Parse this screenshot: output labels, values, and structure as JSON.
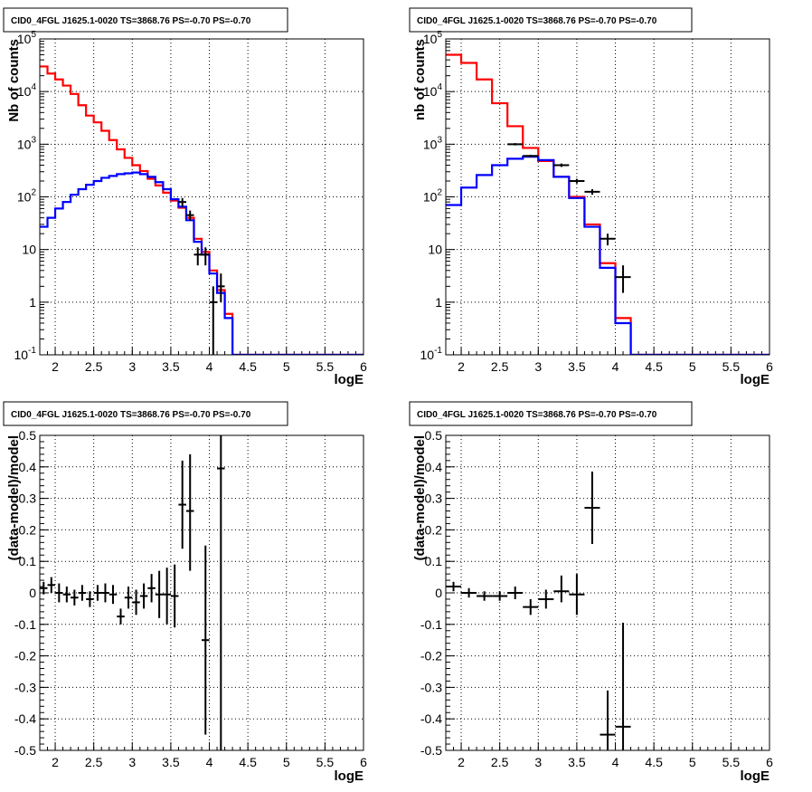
{
  "colors": {
    "model_total": "#ff0000",
    "model_source": "#0000ff",
    "data_points": "#000000",
    "grid": "#000000",
    "frame": "#000000"
  },
  "chart_data": [
    {
      "type": "histogram",
      "title": "CID0_4FGL J1625.1-0020 TS=3868.76 PS=-0.70 PS=-0.70",
      "xlabel": "logE",
      "ylabel": "Nb of counts",
      "xlim": [
        1.8,
        6.0
      ],
      "ylim": [
        0.1,
        100000
      ],
      "yscale": "log",
      "grid": true,
      "x_ticks": [
        "2",
        "2.5",
        "3",
        "3.5",
        "4",
        "4.5",
        "5",
        "5.5",
        "6"
      ],
      "y_ticks": [
        "10^-1",
        "1",
        "10",
        "10^2",
        "10^3",
        "10^4",
        "10^5"
      ],
      "bin_edges": [
        1.8,
        1.9,
        2.0,
        2.1,
        2.2,
        2.3,
        2.4,
        2.5,
        2.6,
        2.7,
        2.8,
        2.9,
        3.0,
        3.1,
        3.2,
        3.3,
        3.4,
        3.5,
        3.6,
        3.7,
        3.8,
        3.9,
        4.0,
        4.1,
        4.2,
        4.3,
        4.4,
        4.5,
        6.0
      ],
      "series": [
        {
          "color": "red",
          "values": [
            30000,
            22000,
            17000,
            13000,
            9000,
            5500,
            3500,
            2600,
            1800,
            1200,
            800,
            550,
            400,
            310,
            220,
            165,
            120,
            85,
            62,
            40,
            16,
            9,
            4,
            1.7,
            0.6,
            0.1,
            0.1,
            0.1
          ]
        },
        {
          "color": "blue",
          "values": [
            27,
            40,
            60,
            80,
            110,
            140,
            170,
            200,
            230,
            250,
            270,
            280,
            290,
            270,
            240,
            190,
            140,
            90,
            65,
            36,
            14,
            8,
            3.5,
            1.5,
            0.5,
            0.1,
            0.1,
            0.1
          ]
        }
      ],
      "points": [
        {
          "x": 3.65,
          "y": 80,
          "xerr": 0.05,
          "ylo": 65,
          "yhi": 95
        },
        {
          "x": 3.75,
          "y": 45,
          "xerr": 0.05,
          "ylo": 35,
          "yhi": 55
        },
        {
          "x": 3.85,
          "y": 8,
          "xerr": 0.05,
          "ylo": 5,
          "yhi": 11
        },
        {
          "x": 3.95,
          "y": 8,
          "xerr": 0.05,
          "ylo": 5,
          "yhi": 11
        },
        {
          "x": 4.05,
          "y": 1,
          "xerr": 0.05,
          "ylo": 0.1,
          "yhi": 2
        },
        {
          "x": 4.15,
          "y": 2,
          "xerr": 0.05,
          "ylo": 1,
          "yhi": 3.5
        }
      ]
    },
    {
      "type": "histogram",
      "title": "CID0_4FGL J1625.1-0020 TS=3868.76 PS=-0.70 PS=-0.70",
      "xlabel": "logE",
      "ylabel": "nb of counts",
      "xlim": [
        1.8,
        6.0
      ],
      "ylim": [
        0.1,
        100000
      ],
      "yscale": "log",
      "grid": true,
      "x_ticks": [
        "2",
        "2.5",
        "3",
        "3.5",
        "4",
        "4.5",
        "5",
        "5.5",
        "6"
      ],
      "y_ticks": [
        "10^-1",
        "1",
        "10",
        "10^2",
        "10^3",
        "10^4",
        "10^5"
      ],
      "bin_edges": [
        1.8,
        2.0,
        2.2,
        2.4,
        2.6,
        2.8,
        3.0,
        3.2,
        3.4,
        3.6,
        3.8,
        4.0,
        4.2,
        4.4,
        6.0
      ],
      "series": [
        {
          "color": "red",
          "values": [
            50000,
            35000,
            17000,
            6000,
            2200,
            850,
            480,
            240,
            100,
            30,
            5.5,
            0.5,
            0.1,
            0.1
          ]
        },
        {
          "color": "blue",
          "values": [
            70,
            150,
            260,
            400,
            530,
            580,
            500,
            240,
            95,
            27,
            4.5,
            0.4,
            0.1,
            0.1
          ]
        }
      ],
      "points": [
        {
          "x": 2.7,
          "y": 1000,
          "xerr": 0.1,
          "ylo": 950,
          "yhi": 1050
        },
        {
          "x": 2.9,
          "y": 600,
          "xerr": 0.1,
          "ylo": 570,
          "yhi": 630
        },
        {
          "x": 3.3,
          "y": 400,
          "xerr": 0.1,
          "ylo": 370,
          "yhi": 430
        },
        {
          "x": 3.5,
          "y": 200,
          "xerr": 0.1,
          "ylo": 180,
          "yhi": 220
        },
        {
          "x": 3.7,
          "y": 125,
          "xerr": 0.1,
          "ylo": 110,
          "yhi": 140
        },
        {
          "x": 3.9,
          "y": 16,
          "xerr": 0.1,
          "ylo": 12,
          "yhi": 20
        },
        {
          "x": 4.1,
          "y": 3,
          "xerr": 0.1,
          "ylo": 1.5,
          "yhi": 5
        }
      ]
    },
    {
      "type": "scatter",
      "title": "CID0_4FGL J1625.1-0020 TS=3868.76 PS=-0.70 PS=-0.70",
      "xlabel": "logE",
      "ylabel": "(data-model)/model",
      "xlim": [
        1.8,
        6.0
      ],
      "ylim": [
        -0.5,
        0.5
      ],
      "grid": true,
      "x_ticks": [
        "2",
        "2.5",
        "3",
        "3.5",
        "4",
        "4.5",
        "5",
        "5.5",
        "6"
      ],
      "y_ticks": [
        "-0.5",
        "-0.4",
        "-0.3",
        "-0.2",
        "-0.1",
        "0",
        "0.1",
        "0.2",
        "0.3",
        "0.4",
        "0.5"
      ],
      "points": [
        {
          "x": 1.85,
          "y": 0.015,
          "xerr": 0.05,
          "ylo": -0.005,
          "yhi": 0.035
        },
        {
          "x": 1.95,
          "y": 0.025,
          "xerr": 0.05,
          "ylo": 0.0,
          "yhi": 0.05
        },
        {
          "x": 2.05,
          "y": 0.0,
          "xerr": 0.05,
          "ylo": -0.03,
          "yhi": 0.03
        },
        {
          "x": 2.15,
          "y": -0.005,
          "xerr": 0.05,
          "ylo": -0.03,
          "yhi": 0.02
        },
        {
          "x": 2.25,
          "y": -0.015,
          "xerr": 0.05,
          "ylo": -0.04,
          "yhi": 0.01
        },
        {
          "x": 2.35,
          "y": 0.0,
          "xerr": 0.05,
          "ylo": -0.025,
          "yhi": 0.025
        },
        {
          "x": 2.45,
          "y": -0.02,
          "xerr": 0.05,
          "ylo": -0.045,
          "yhi": 0.005
        },
        {
          "x": 2.55,
          "y": 0.0,
          "xerr": 0.05,
          "ylo": -0.025,
          "yhi": 0.025
        },
        {
          "x": 2.65,
          "y": 0.0,
          "xerr": 0.05,
          "ylo": -0.03,
          "yhi": 0.03
        },
        {
          "x": 2.75,
          "y": -0.005,
          "xerr": 0.05,
          "ylo": -0.035,
          "yhi": 0.025
        },
        {
          "x": 2.85,
          "y": -0.075,
          "xerr": 0.05,
          "ylo": -0.1,
          "yhi": -0.05
        },
        {
          "x": 2.95,
          "y": -0.015,
          "xerr": 0.05,
          "ylo": -0.05,
          "yhi": 0.02
        },
        {
          "x": 3.05,
          "y": -0.03,
          "xerr": 0.05,
          "ylo": -0.07,
          "yhi": 0.01
        },
        {
          "x": 3.15,
          "y": -0.01,
          "xerr": 0.05,
          "ylo": -0.05,
          "yhi": 0.03
        },
        {
          "x": 3.25,
          "y": 0.015,
          "xerr": 0.05,
          "ylo": -0.03,
          "yhi": 0.06
        },
        {
          "x": 3.35,
          "y": -0.005,
          "xerr": 0.05,
          "ylo": -0.08,
          "yhi": 0.07
        },
        {
          "x": 3.45,
          "y": -0.005,
          "xerr": 0.05,
          "ylo": -0.1,
          "yhi": 0.08
        },
        {
          "x": 3.55,
          "y": -0.01,
          "xerr": 0.05,
          "ylo": -0.11,
          "yhi": 0.09
        },
        {
          "x": 3.65,
          "y": 0.28,
          "xerr": 0.05,
          "ylo": 0.14,
          "yhi": 0.42
        },
        {
          "x": 3.75,
          "y": 0.26,
          "xerr": 0.05,
          "ylo": 0.07,
          "yhi": 0.44
        },
        {
          "x": 3.95,
          "y": -0.15,
          "xerr": 0.05,
          "ylo": -0.45,
          "yhi": 0.15
        },
        {
          "x": 4.15,
          "y": 0.395,
          "xerr": 0.05,
          "ylo": -0.5,
          "yhi": 0.5
        }
      ]
    },
    {
      "type": "scatter",
      "title": "CID0_4FGL J1625.1-0020 TS=3868.76 PS=-0.70 PS=-0.70",
      "xlabel": "logE",
      "ylabel": "(data-model)/model",
      "xlim": [
        1.8,
        6.0
      ],
      "ylim": [
        -0.5,
        0.5
      ],
      "grid": true,
      "x_ticks": [
        "2",
        "2.5",
        "3",
        "3.5",
        "4",
        "4.5",
        "5",
        "5.5",
        "6"
      ],
      "y_ticks": [
        "-0.5",
        "-0.4",
        "-0.3",
        "-0.2",
        "-0.1",
        "0",
        "0.1",
        "0.2",
        "0.3",
        "0.4",
        "0.5"
      ],
      "points": [
        {
          "x": 1.9,
          "y": 0.02,
          "xerr": 0.1,
          "ylo": 0.005,
          "yhi": 0.035
        },
        {
          "x": 2.1,
          "y": 0.0,
          "xerr": 0.1,
          "ylo": -0.015,
          "yhi": 0.015
        },
        {
          "x": 2.3,
          "y": -0.01,
          "xerr": 0.1,
          "ylo": -0.025,
          "yhi": 0.005
        },
        {
          "x": 2.5,
          "y": -0.01,
          "xerr": 0.1,
          "ylo": -0.025,
          "yhi": 0.005
        },
        {
          "x": 2.7,
          "y": 0.0,
          "xerr": 0.1,
          "ylo": -0.02,
          "yhi": 0.02
        },
        {
          "x": 2.9,
          "y": -0.045,
          "xerr": 0.1,
          "ylo": -0.07,
          "yhi": -0.02
        },
        {
          "x": 3.1,
          "y": -0.02,
          "xerr": 0.1,
          "ylo": -0.05,
          "yhi": 0.01
        },
        {
          "x": 3.3,
          "y": 0.005,
          "xerr": 0.1,
          "ylo": -0.03,
          "yhi": 0.055
        },
        {
          "x": 3.5,
          "y": -0.005,
          "xerr": 0.1,
          "ylo": -0.07,
          "yhi": 0.06
        },
        {
          "x": 3.7,
          "y": 0.27,
          "xerr": 0.1,
          "ylo": 0.155,
          "yhi": 0.385
        },
        {
          "x": 3.9,
          "y": -0.45,
          "xerr": 0.1,
          "ylo": -0.5,
          "yhi": -0.31
        },
        {
          "x": 4.1,
          "y": -0.425,
          "xerr": 0.1,
          "ylo": -0.5,
          "yhi": -0.095
        }
      ]
    }
  ]
}
